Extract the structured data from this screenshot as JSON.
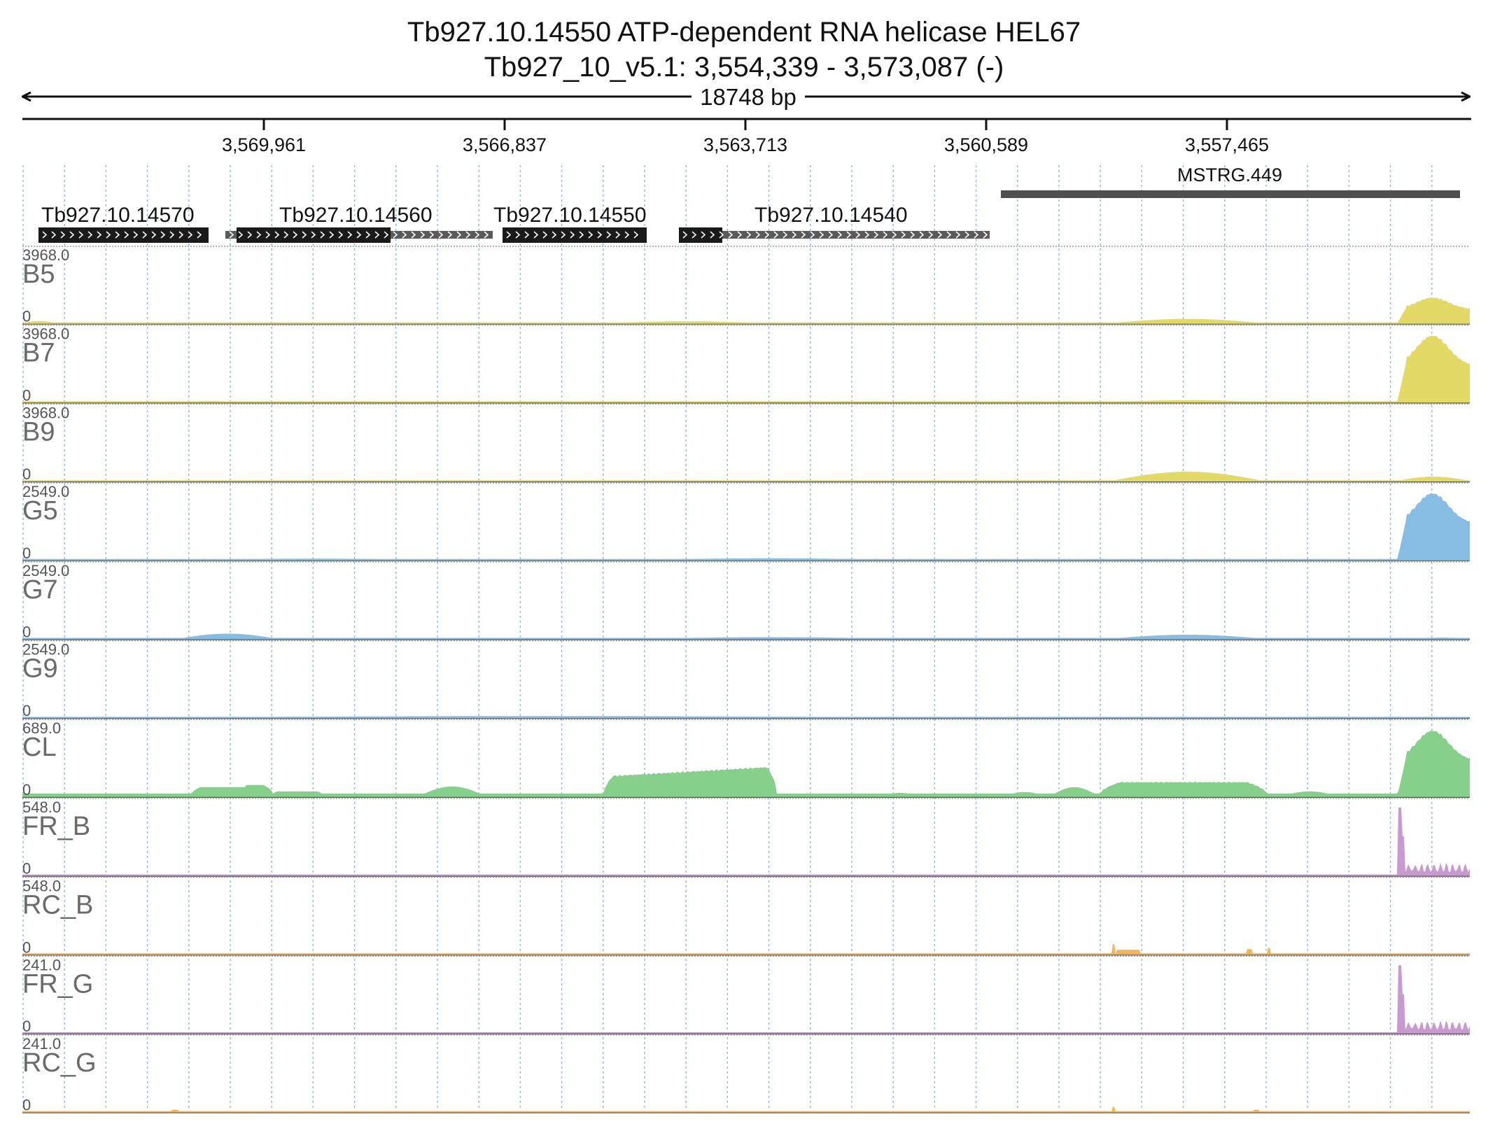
{
  "header": {
    "title": "Tb927.10.14550  ATP-dependent RNA helicase HEL67",
    "locus": "Tb927_10_v5.1: 3,554,339 - 3,573,087 (-)",
    "span_label": "18748 bp"
  },
  "ruler": {
    "ticks": [
      "3,569,961",
      "3,566,837",
      "3,563,713",
      "3,560,589",
      "3,557,465"
    ],
    "strand": "-",
    "range": [
      3554339,
      3573087
    ]
  },
  "transcript": {
    "label": "MSTRG.449",
    "color": "#4f4f4f"
  },
  "genes": [
    {
      "label": "Tb927.10.14570"
    },
    {
      "label": "Tb927.10.14560"
    },
    {
      "label": "Tb927.10.14550"
    },
    {
      "label": "Tb927.10.14540"
    }
  ],
  "tracks": [
    {
      "name": "B5",
      "max": "3968.0",
      "min": "0",
      "color": "#e3d967",
      "profile": "B5"
    },
    {
      "name": "B7",
      "max": "3968.0",
      "min": "0",
      "color": "#e3d967",
      "profile": "B7"
    },
    {
      "name": "B9",
      "max": "3968.0",
      "min": "0",
      "color": "#e3d967",
      "profile": "B9"
    },
    {
      "name": "G5",
      "max": "2549.0",
      "min": "0",
      "color": "#87bde3",
      "profile": "G5"
    },
    {
      "name": "G7",
      "max": "2549.0",
      "min": "0",
      "color": "#87bde3",
      "profile": "G7"
    },
    {
      "name": "G9",
      "max": "2549.0",
      "min": "0",
      "color": "#87bde3",
      "profile": "G9"
    },
    {
      "name": "CL",
      "max": "689.0",
      "min": "0",
      "color": "#86d08c",
      "profile": "CL"
    },
    {
      "name": "FR_B",
      "max": "548.0",
      "min": "0",
      "color": "#c99ad0",
      "profile": "FR"
    },
    {
      "name": "RC_B",
      "max": "548.0",
      "min": "0",
      "color": "#f2b457",
      "profile": "RC"
    },
    {
      "name": "FR_G",
      "max": "241.0",
      "min": "0",
      "color": "#c99ad0",
      "profile": "FR"
    },
    {
      "name": "RC_G",
      "max": "241.0",
      "min": "0",
      "color": "#f2b457",
      "profile": "RCG"
    }
  ],
  "colors": {
    "gene_exon": "#1a1a1a",
    "gene_utr": "#5a5a5a",
    "grid": "#8fb6d8",
    "axis": "#111111"
  }
}
